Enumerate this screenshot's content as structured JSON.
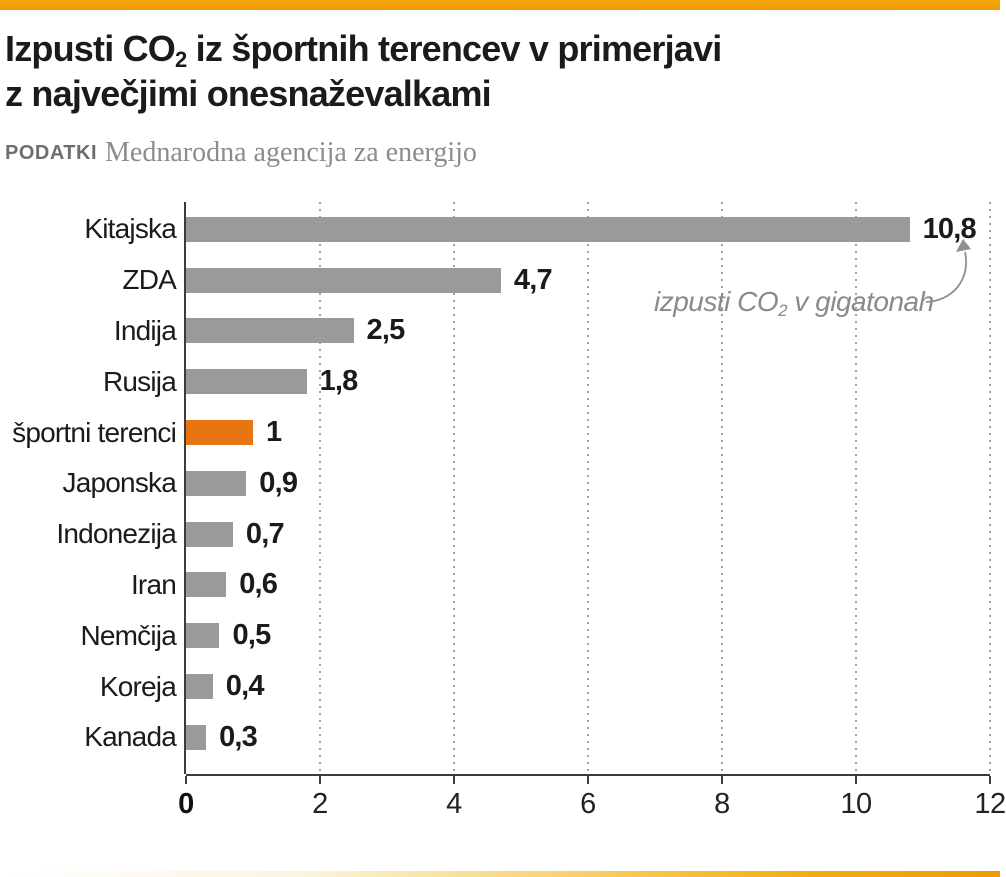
{
  "accent": {
    "top_bar_color": "#F0A005",
    "highlight_color": "#E87511",
    "bar_color": "#9A9A9A"
  },
  "header": {
    "title_line1_prefix": "Izpusti CO",
    "title_line1_sub": "2",
    "title_line1_rest": " iz športnih terencev v primerjavi",
    "title_line2": "z največjimi onesnaževalkami",
    "source_label": "PODATKI",
    "source_text": "Mednarodna agencija za energijo"
  },
  "annotation": {
    "prefix": "izpusti CO",
    "sub": "2",
    "rest": " v gigatonah"
  },
  "chart_data": {
    "type": "bar",
    "orientation": "horizontal",
    "title": "Izpusti CO2 iz športnih terencev v primerjavi z največjimi onesnaževalkami",
    "source": "PODATKI Mednarodna agencija za energijo",
    "unit_annotation": "izpusti CO2 v gigatonah",
    "categories": [
      "Kitajska",
      "ZDA",
      "Indija",
      "Rusija",
      "športni terenci",
      "Japonska",
      "Indonezija",
      "Iran",
      "Nemčija",
      "Koreja",
      "Kanada"
    ],
    "values": [
      10.8,
      4.7,
      2.5,
      1.8,
      1,
      0.9,
      0.7,
      0.6,
      0.5,
      0.4,
      0.3
    ],
    "value_labels": [
      "10,8",
      "4,7",
      "2,5",
      "1,8",
      "1",
      "0,9",
      "0,7",
      "0,6",
      "0,5",
      "0,4",
      "0,3"
    ],
    "highlight_category": "športni terenci",
    "xlim": [
      0,
      12
    ],
    "x_ticks": [
      0,
      2,
      4,
      6,
      8,
      10,
      12
    ],
    "x_tick_labels": [
      "0",
      "2",
      "4",
      "6",
      "8",
      "10",
      "12"
    ],
    "grid": "dotted-vertical",
    "legend": "none"
  }
}
